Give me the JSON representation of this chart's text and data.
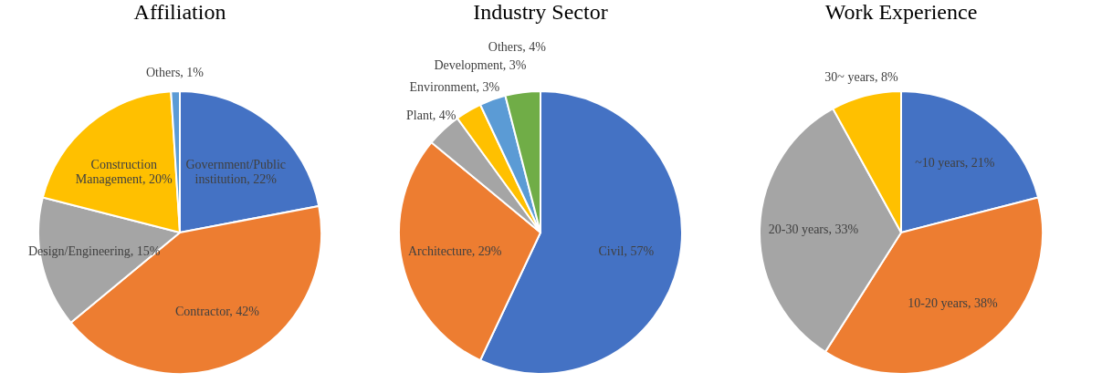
{
  "chart_data": [
    {
      "type": "pie",
      "title": "Affiliation",
      "categories": [
        "Government/Public institution",
        "Contractor",
        "Design/Engineering",
        "Construction Management",
        "Others"
      ],
      "values": [
        22,
        42,
        15,
        20,
        1
      ],
      "value_labels": [
        "22%",
        "42%",
        "15%",
        "20%",
        "1%"
      ],
      "colors": [
        "#4472c4",
        "#ed7d31",
        "#a5a5a5",
        "#ffc000",
        "#5b9bd5"
      ],
      "legend": false
    },
    {
      "type": "pie",
      "title": "Industry Sector",
      "categories": [
        "Civil",
        "Architecture",
        "Plant",
        "Environment",
        "Development",
        "Others"
      ],
      "values": [
        57,
        29,
        4,
        3,
        3,
        4
      ],
      "value_labels": [
        "57%",
        "29%",
        "4%",
        "3%",
        "3%",
        "4%"
      ],
      "colors": [
        "#4472c4",
        "#ed7d31",
        "#a5a5a5",
        "#ffc000",
        "#5b9bd5",
        "#70ad47"
      ],
      "legend": false
    },
    {
      "type": "pie",
      "title": "Work Experience",
      "categories": [
        "~10 years",
        "10-20 years",
        "20-30 years",
        "30~ years"
      ],
      "values": [
        21,
        38,
        33,
        8
      ],
      "value_labels": [
        "21%",
        "38%",
        "33%",
        "8%"
      ],
      "colors": [
        "#4472c4",
        "#ed7d31",
        "#a5a5a5",
        "#ffc000"
      ],
      "legend": false
    }
  ]
}
